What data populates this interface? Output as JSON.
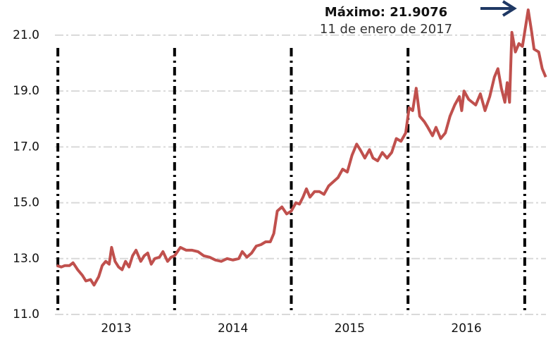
{
  "chart_data": {
    "type": "line",
    "annotation_lines": [
      "Máximo: 21.9076",
      "11 de enero de 2017"
    ],
    "color": "#c0504d",
    "x": [
      2012.99,
      2013.03,
      2013.06,
      2013.1,
      2013.13,
      2013.17,
      2013.21,
      2013.24,
      2013.28,
      2013.31,
      2013.35,
      2013.38,
      2013.41,
      2013.44,
      2013.46,
      2013.49,
      2013.52,
      2013.55,
      2013.58,
      2013.61,
      2013.64,
      2013.67,
      2013.71,
      2013.74,
      2013.77,
      2013.8,
      2013.83,
      2013.87,
      2013.9,
      2013.94,
      2013.97,
      2014.0,
      2014.05,
      2014.1,
      2014.15,
      2014.2,
      2014.25,
      2014.3,
      2014.35,
      2014.4,
      2014.45,
      2014.5,
      2014.55,
      2014.58,
      2014.62,
      2014.66,
      2014.7,
      2014.74,
      2014.78,
      2014.82,
      2014.85,
      2014.88,
      2014.92,
      2014.96,
      2015.0,
      2015.04,
      2015.07,
      2015.1,
      2015.13,
      2015.16,
      2015.2,
      2015.24,
      2015.28,
      2015.32,
      2015.36,
      2015.4,
      2015.44,
      2015.48,
      2015.52,
      2015.56,
      2015.59,
      2015.63,
      2015.67,
      2015.7,
      2015.74,
      2015.78,
      2015.82,
      2015.86,
      2015.9,
      2015.94,
      2015.98,
      2016.01,
      2016.04,
      2016.07,
      2016.1,
      2016.14,
      2016.17,
      2016.21,
      2016.24,
      2016.28,
      2016.32,
      2016.36,
      2016.4,
      2016.44,
      2016.46,
      2016.48,
      2016.52,
      2016.55,
      2016.58,
      2016.62,
      2016.66,
      2016.7,
      2016.74,
      2016.77,
      2016.8,
      2016.83,
      2016.85,
      2016.87,
      2016.89,
      2016.92,
      2016.95,
      2016.98,
      2017.03,
      2017.06,
      2017.08,
      2017.12,
      2017.15,
      2017.18
    ],
    "values": [
      12.75,
      12.7,
      12.75,
      12.75,
      12.85,
      12.6,
      12.4,
      12.2,
      12.25,
      12.05,
      12.35,
      12.75,
      12.9,
      12.8,
      13.4,
      12.9,
      12.7,
      12.6,
      12.9,
      12.7,
      13.1,
      13.3,
      12.9,
      13.1,
      13.2,
      12.8,
      13.0,
      13.05,
      13.25,
      12.9,
      13.05,
      13.1,
      13.4,
      13.3,
      13.3,
      13.25,
      13.1,
      13.05,
      12.95,
      12.9,
      13.0,
      12.95,
      13.0,
      13.25,
      13.05,
      13.2,
      13.45,
      13.5,
      13.6,
      13.6,
      13.9,
      14.7,
      14.85,
      14.6,
      14.7,
      15.0,
      14.95,
      15.2,
      15.5,
      15.2,
      15.4,
      15.4,
      15.3,
      15.6,
      15.75,
      15.9,
      16.2,
      16.1,
      16.7,
      17.1,
      16.9,
      16.6,
      16.9,
      16.6,
      16.5,
      16.8,
      16.6,
      16.8,
      17.3,
      17.2,
      17.5,
      18.4,
      18.3,
      19.1,
      18.1,
      17.9,
      17.7,
      17.4,
      17.7,
      17.3,
      17.5,
      18.1,
      18.5,
      18.8,
      18.3,
      19.0,
      18.7,
      18.6,
      18.5,
      18.9,
      18.3,
      18.8,
      19.5,
      19.8,
      19.1,
      18.6,
      19.3,
      18.6,
      21.1,
      20.4,
      20.7,
      20.6,
      21.9076,
      21.1,
      20.5,
      20.4,
      19.8,
      19.5
    ],
    "xlim": [
      2012.975,
      2017.2
    ],
    "xticks": [
      {
        "value": 2013.5,
        "label": "2013"
      },
      {
        "value": 2014.5,
        "label": "2014"
      },
      {
        "value": 2015.5,
        "label": "2015"
      },
      {
        "value": 2016.5,
        "label": "2016"
      }
    ],
    "year_boundaries": [
      2013,
      2014,
      2015,
      2016,
      2017
    ],
    "ylim": [
      11,
      22.26
    ],
    "yticks": [
      {
        "value": 11,
        "label": "11.0"
      },
      {
        "value": 13,
        "label": "13.0"
      },
      {
        "value": 15,
        "label": "15.0"
      },
      {
        "value": 17,
        "label": "17.0"
      },
      {
        "value": 19,
        "label": "19.0"
      },
      {
        "value": 21,
        "label": "21.0"
      }
    ],
    "grid": true
  }
}
